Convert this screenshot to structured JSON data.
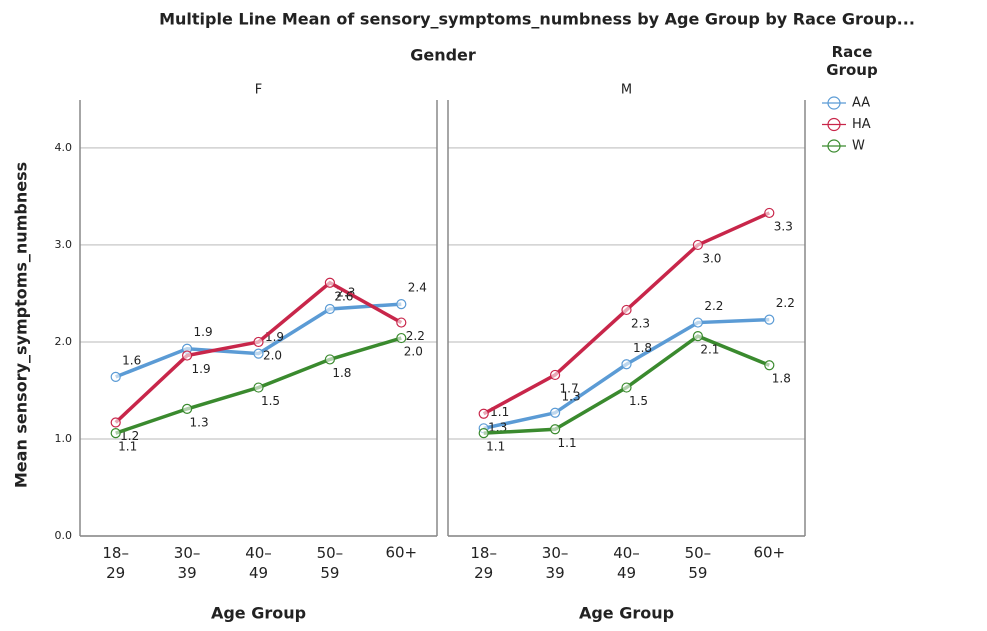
{
  "title": "Multiple Line Mean of sensory_symptoms_numbness by Age Group by Race Group...",
  "facet_label": "Gender",
  "legend_title": "Race Group",
  "chart_data": [
    {
      "type": "line",
      "panel": "F",
      "x_label": "Age Group",
      "y_label": "Mean sensory_symptoms_numbness",
      "categories": [
        "18–29",
        "30–39",
        "40–49",
        "50–59",
        "60+"
      ],
      "ylim": [
        0,
        4.7
      ],
      "yticks": [
        {
          "value": 0,
          "label": "0.0"
        },
        {
          "value": 1,
          "label": "1.0"
        },
        {
          "value": 2,
          "label": "2.0"
        },
        {
          "value": 3,
          "label": "3.0"
        },
        {
          "value": 4,
          "label": "4.0"
        }
      ],
      "grid": true,
      "series": [
        {
          "name": "AA",
          "color": "#5b9bd5",
          "values": [
            1.64,
            1.93,
            1.88,
            2.34,
            2.39
          ],
          "value_labels": [
            "1.6",
            "1.9",
            "1.9",
            "2.3",
            "2.4"
          ]
        },
        {
          "name": "HA",
          "color": "#c8264a",
          "values": [
            1.17,
            1.86,
            2.0,
            2.61,
            2.2
          ],
          "value_labels": [
            "1.2",
            "1.9",
            "2.0",
            "2.6",
            "2.2"
          ]
        },
        {
          "name": "W",
          "color": "#3a8a2e",
          "values": [
            1.06,
            1.31,
            1.53,
            1.82,
            2.04
          ],
          "value_labels": [
            "1.1",
            "1.3",
            "1.5",
            "1.8",
            "2.0"
          ]
        }
      ]
    },
    {
      "type": "line",
      "panel": "M",
      "x_label": "Age Group",
      "categories": [
        "18–29",
        "30–39",
        "40–49",
        "50–59",
        "60+"
      ],
      "ylim": [
        0,
        4.7
      ],
      "yticks": [
        0,
        1,
        2,
        3,
        4
      ],
      "grid": true,
      "series": [
        {
          "name": "AA",
          "color": "#5b9bd5",
          "values": [
            1.11,
            1.27,
            1.77,
            2.2,
            2.23
          ],
          "value_labels": [
            "1.1",
            "1.3",
            "1.8",
            "2.2",
            "2.2"
          ]
        },
        {
          "name": "HA",
          "color": "#c8264a",
          "values": [
            1.26,
            1.66,
            2.33,
            3.0,
            3.33
          ],
          "value_labels": [
            "1.3",
            "1.7",
            "2.3",
            "3.0",
            "3.3"
          ]
        },
        {
          "name": "W",
          "color": "#3a8a2e",
          "values": [
            1.06,
            1.1,
            1.53,
            2.06,
            1.76
          ],
          "value_labels": [
            "1.1",
            "1.1",
            "1.5",
            "2.1",
            "1.8"
          ]
        }
      ]
    }
  ]
}
